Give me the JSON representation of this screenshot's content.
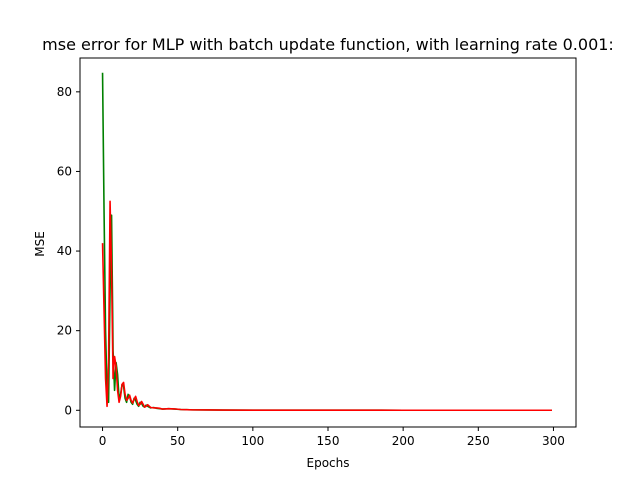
{
  "chart_data": {
    "type": "line",
    "title": "mse error for MLP with batch update function, with learning rate 0.001:",
    "xlabel": "Epochs",
    "ylabel": "MSE",
    "xlim": [
      -15,
      315
    ],
    "ylim": [
      -4.2,
      88.5
    ],
    "xticks": [
      0,
      50,
      100,
      150,
      200,
      250,
      300
    ],
    "yticks": [
      0,
      20,
      40,
      60,
      80
    ],
    "grid": false,
    "series": [
      {
        "color": "#008000",
        "x": [
          0,
          1,
          2,
          3,
          4,
          5,
          6,
          7,
          8,
          9,
          10,
          11,
          12,
          13,
          14,
          15,
          16,
          17,
          18,
          19,
          20,
          21,
          22,
          23,
          24,
          25,
          26,
          27,
          28,
          29,
          30,
          32,
          34,
          36,
          38,
          40,
          44,
          48,
          52,
          56,
          60,
          70,
          80,
          100,
          150,
          200,
          250,
          299
        ],
        "y": [
          84.8,
          50,
          20,
          5,
          2,
          30,
          49,
          15,
          5,
          12,
          9,
          3,
          4,
          6.5,
          6,
          3,
          2,
          4,
          3.5,
          2,
          1.5,
          3,
          2.5,
          1.5,
          1,
          2,
          1.7,
          1,
          0.8,
          1.3,
          1,
          0.6,
          0.7,
          0.5,
          0.4,
          0.3,
          0.4,
          0.3,
          0.2,
          0.15,
          0.1,
          0.08,
          0.05,
          0.03,
          0.02,
          0.01,
          0.01,
          0.01
        ]
      },
      {
        "color": "#ff0000",
        "x": [
          0,
          1,
          2,
          3,
          4,
          5,
          6,
          7,
          8,
          9,
          10,
          11,
          12,
          13,
          14,
          15,
          16,
          17,
          18,
          19,
          20,
          21,
          22,
          23,
          24,
          25,
          26,
          27,
          28,
          29,
          30,
          32,
          34,
          36,
          38,
          40,
          44,
          48,
          52,
          56,
          60,
          70,
          80,
          100,
          150,
          200,
          250,
          299
        ],
        "y": [
          42,
          25,
          8,
          1,
          12,
          52.5,
          35,
          8,
          13.5,
          11,
          5,
          2,
          3.5,
          6.5,
          7,
          4,
          2.5,
          3,
          3.8,
          2.5,
          1.8,
          2.8,
          3.5,
          2.2,
          1.2,
          1.5,
          2.2,
          1.5,
          0.8,
          1.0,
          1.4,
          0.7,
          0.6,
          0.6,
          0.5,
          0.3,
          0.4,
          0.35,
          0.2,
          0.15,
          0.1,
          0.08,
          0.05,
          0.03,
          0.02,
          0.01,
          0.01,
          0.01
        ]
      }
    ]
  }
}
